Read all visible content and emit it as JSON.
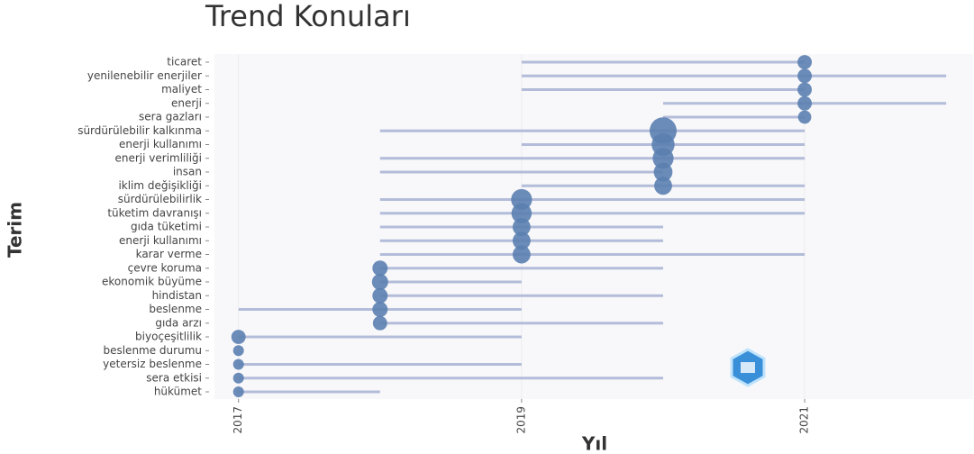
{
  "chart_data": {
    "type": "trend",
    "title": "Trend Konuları",
    "y_label": "Terim",
    "x_label": "Yıl",
    "categories": [
      "ticaret",
      "yenilenebilir enerjiler",
      "maliyet",
      "enerji",
      "sera gazları",
      "sürdürülebilir kalkınma",
      "enerji kullanımı",
      "enerji verimliliği",
      "insan",
      "iklim değişikliği",
      "sürdürülebilirlik",
      "tüketim davranışı",
      "gıda tüketimi",
      "enerji kullanımı",
      "karar verme",
      "çevre koruma",
      "ekonomik büyüme",
      "hindistan",
      "beslenme",
      "gıda arzı",
      "biyoçeşitlilik",
      "beslenme durumu",
      "yetersiz beslenme",
      "sera etkisi",
      "hükümet"
    ],
    "start": [
      2019,
      2019,
      2019,
      2020,
      2020,
      2018,
      2019,
      2018,
      2018,
      2019,
      2018,
      2018,
      2018,
      2018,
      2018,
      2018,
      2018,
      2018,
      2017,
      2018,
      2017,
      2017,
      2017,
      2017,
      2017
    ],
    "median": [
      2021,
      2021,
      2021,
      2021,
      2021,
      2020,
      2020,
      2020,
      2020,
      2020,
      2019,
      2019,
      2019,
      2019,
      2019,
      2018,
      2018,
      2018,
      2018,
      2018,
      2017,
      2017,
      2017,
      2017,
      2017
    ],
    "end": [
      2021,
      2022,
      2021,
      2022,
      2021,
      2021,
      2021,
      2021,
      2020,
      2021,
      2021,
      2021,
      2020,
      2020,
      2021,
      2020,
      2019,
      2020,
      2019,
      2020,
      2019,
      2017,
      2019,
      2020,
      2018
    ],
    "size": [
      7,
      7,
      7,
      7,
      6,
      25,
      18,
      15,
      12,
      11,
      15,
      14,
      11,
      11,
      11,
      8,
      9,
      8,
      8,
      7,
      7,
      4,
      4,
      4,
      4
    ],
    "line_color": "#b3bcd9",
    "bubble_color": "#5b7fb0",
    "xlim": [
      2016.83,
      2022.19
    ],
    "xticks": [
      2017,
      2019,
      2021
    ]
  }
}
